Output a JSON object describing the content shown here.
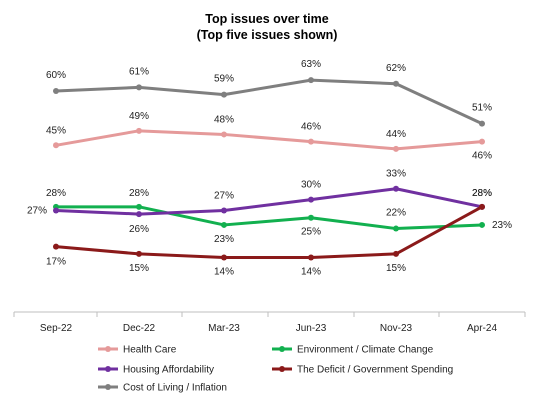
{
  "chart_data": {
    "type": "line",
    "title": "Top issues over time",
    "subtitle": "(Top five issues shown)",
    "categories": [
      "Sep-22",
      "Dec-22",
      "Mar-23",
      "Jun-23",
      "Nov-23",
      "Apr-24"
    ],
    "ylim": [
      0,
      70
    ],
    "grid": false,
    "legend_position": "bottom",
    "value_suffix": "%",
    "series": [
      {
        "name": "Cost of Living / Inflation",
        "color": "#7f7f7f",
        "values": [
          60,
          61,
          59,
          63,
          62,
          51
        ]
      },
      {
        "name": "Health Care",
        "color": "#e59a9a",
        "values": [
          45,
          49,
          48,
          46,
          44,
          46
        ]
      },
      {
        "name": "Environment / Climate Change",
        "color": "#12b04f",
        "values": [
          28,
          28,
          23,
          25,
          22,
          23
        ]
      },
      {
        "name": "Housing Affordability",
        "color": "#7030a0",
        "values": [
          27,
          26,
          27,
          30,
          33,
          28
        ]
      },
      {
        "name": "The Deficit / Government Spending",
        "color": "#8b1a1a",
        "values": [
          17,
          15,
          14,
          14,
          15,
          28
        ]
      }
    ],
    "legend_order": [
      "Health Care",
      "Environment / Climate Change",
      "Housing Affordability",
      "The Deficit / Government Spending",
      "Cost of Living / Inflation"
    ]
  }
}
